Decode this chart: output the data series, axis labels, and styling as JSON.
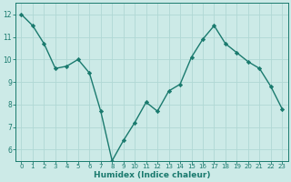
{
  "x": [
    0,
    1,
    2,
    3,
    4,
    5,
    6,
    7,
    8,
    9,
    10,
    11,
    12,
    13,
    14,
    15,
    16,
    17,
    18,
    19,
    20,
    21,
    22,
    23
  ],
  "y": [
    12.0,
    11.5,
    10.7,
    9.6,
    9.7,
    10.0,
    9.4,
    7.7,
    5.5,
    6.4,
    7.2,
    8.1,
    7.7,
    8.6,
    8.9,
    10.1,
    10.9,
    11.5,
    10.7,
    10.3,
    9.9,
    9.6,
    8.8,
    7.8
  ],
  "xlabel": "Humidex (Indice chaleur)",
  "ylim": [
    5.5,
    12.5
  ],
  "xlim": [
    -0.5,
    23.5
  ],
  "yticks": [
    6,
    7,
    8,
    9,
    10,
    11,
    12
  ],
  "xtick_labels": [
    "0",
    "1",
    "2",
    "3",
    "4",
    "5",
    "6",
    "7",
    "8",
    "9",
    "10",
    "11",
    "12",
    "13",
    "14",
    "15",
    "16",
    "17",
    "18",
    "19",
    "20",
    "21",
    "22",
    "23"
  ],
  "line_color": "#1a7a6e",
  "bg_color": "#cceae7",
  "grid_color": "#b0d8d4",
  "marker": "D",
  "marker_size": 2.2,
  "line_width": 1.0,
  "tick_color": "#1a7a6e",
  "xlabel_fontsize": 6.5,
  "tick_fontsize_x": 5.0,
  "tick_fontsize_y": 5.5
}
